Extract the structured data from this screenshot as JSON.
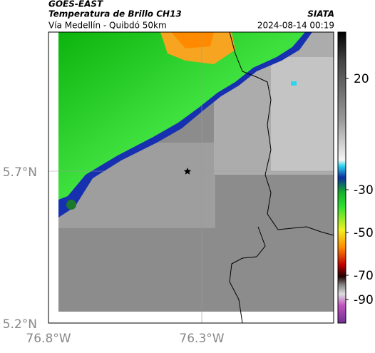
{
  "header": {
    "source": "GOES-EAST",
    "title": "Temperatura de Brillo CH13",
    "subtitle": "Vía Medellín - Quibdó 50km",
    "agency": "SIATA",
    "datetime": "2024-08-14 00:19"
  },
  "axes": {
    "lat_ticks": [
      "5.7°N",
      "5.2°N"
    ],
    "lon_ticks": [
      "76.8°W",
      "76.3°W"
    ]
  },
  "colorbar": {
    "ticks": [
      "20",
      "-30",
      "-50",
      "-70",
      "-90"
    ]
  }
}
